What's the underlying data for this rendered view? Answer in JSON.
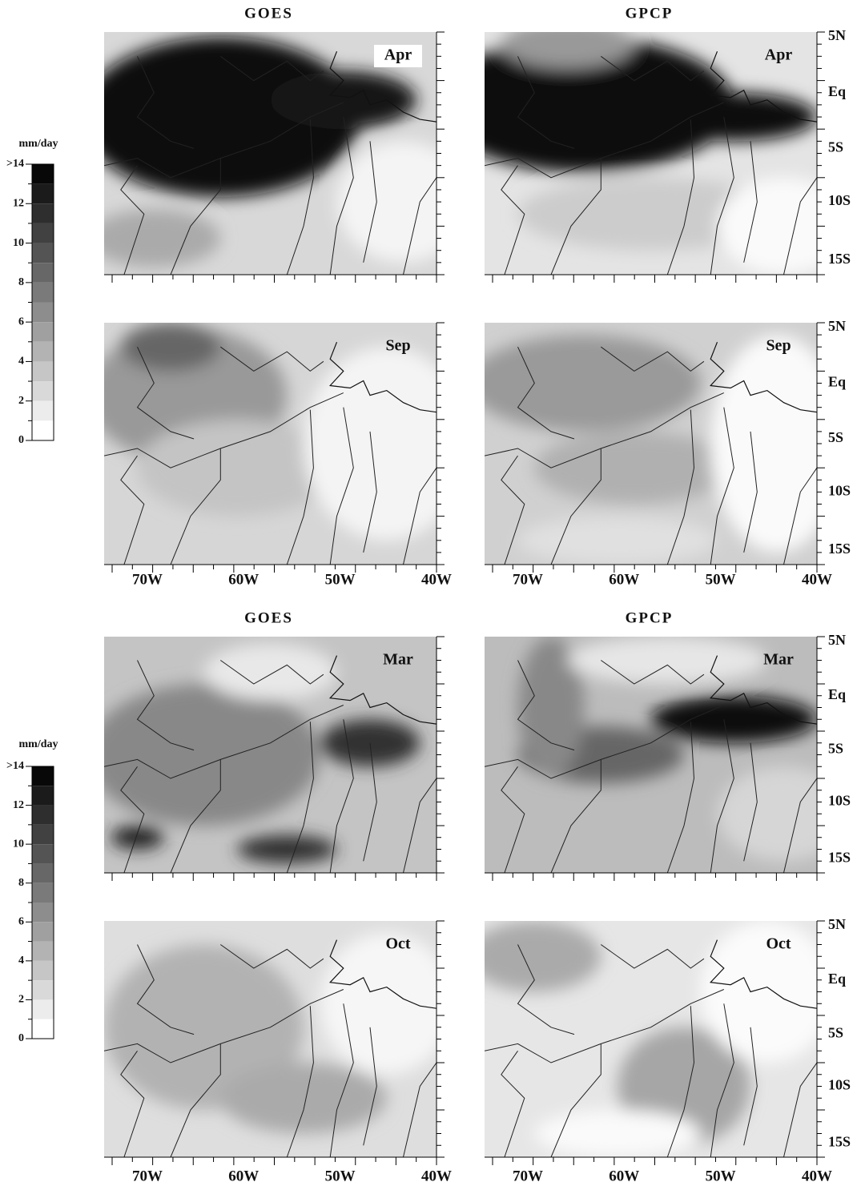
{
  "colorbar": {
    "unit": "mm/day",
    "labels": [
      ">14",
      "12",
      "10",
      "8",
      "6",
      "4",
      "2",
      "0"
    ]
  },
  "column_titles": [
    "GOES",
    "GPCP"
  ],
  "groups": [
    {
      "months": [
        "Apr",
        "Sep"
      ]
    },
    {
      "months": [
        "Mar",
        "Oct"
      ]
    }
  ],
  "lat_labels": [
    "5N",
    "Eq",
    "5S",
    "10S",
    "15S"
  ],
  "lon_labels": [
    "70W",
    "60W",
    "50W",
    "40W"
  ]
}
